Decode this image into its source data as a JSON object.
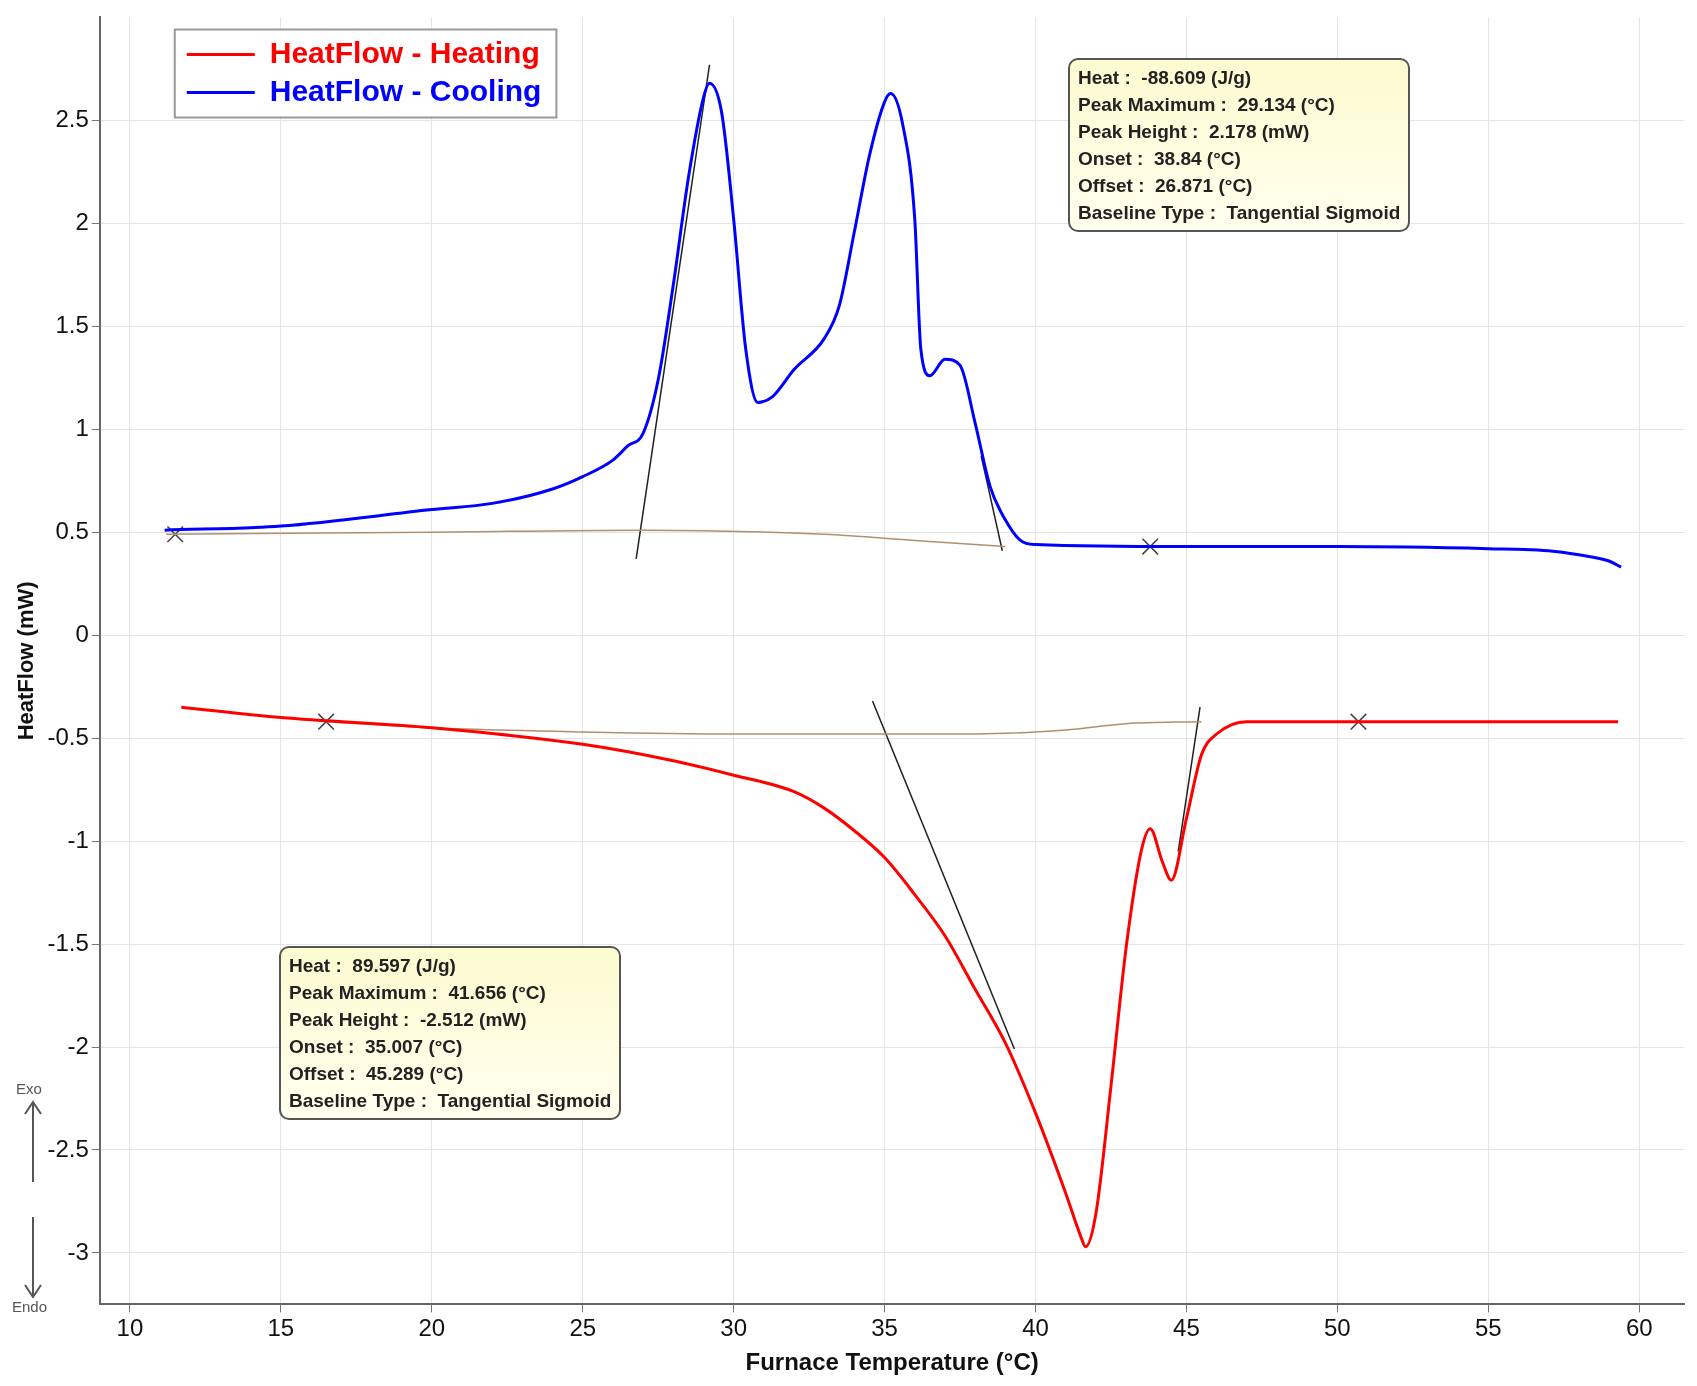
{
  "chart_data": {
    "type": "line",
    "xlabel": "Furnace Temperature (°C)",
    "ylabel": "HeatFlow (mW)",
    "xlim": [
      9,
      61.5
    ],
    "ylim": [
      -3.25,
      3
    ],
    "xticks": [
      10,
      15,
      20,
      25,
      30,
      35,
      40,
      45,
      50,
      55,
      60
    ],
    "yticks": [
      -3,
      -2.5,
      -2,
      -1.5,
      -1,
      -0.5,
      0,
      0.5,
      1,
      1.5,
      2,
      2.5
    ],
    "grid": true,
    "legend": "top left",
    "marker": "none",
    "line_style": "solid",
    "series": [
      {
        "name": "HeatFlow - Heating",
        "color": "#ff0000",
        "x": [
          11.7,
          15,
          20,
          25,
          28,
          30,
          32,
          33,
          34,
          35,
          36,
          37,
          38,
          39,
          40,
          41,
          41.5,
          41.66,
          42,
          42.5,
          43,
          43.5,
          43.8,
          44.2,
          44.5,
          45,
          45.5,
          46,
          47,
          50,
          55,
          59.3
        ],
        "values": [
          -0.35,
          -0.4,
          -0.45,
          -0.53,
          -0.61,
          -0.68,
          -0.76,
          -0.84,
          -0.95,
          -1.08,
          -1.26,
          -1.46,
          -1.72,
          -1.98,
          -2.32,
          -2.71,
          -2.92,
          -2.97,
          -2.81,
          -2.19,
          -1.52,
          -1.05,
          -0.94,
          -1.1,
          -1.19,
          -0.89,
          -0.58,
          -0.48,
          -0.42,
          -0.42,
          -0.42,
          -0.42
        ]
      },
      {
        "name": "HeatFlow - Cooling",
        "color": "#0000ff",
        "x": [
          11.15,
          15,
          20,
          22,
          24,
          25,
          26,
          26.5,
          27,
          27.5,
          28,
          28.5,
          29,
          29.2,
          29.6,
          30,
          30.4,
          30.8,
          31.3,
          32,
          33,
          33.5,
          34,
          34.5,
          35,
          35.2,
          35.6,
          36,
          36.2,
          36.5,
          37,
          37.5,
          38,
          38.5,
          39,
          39.5,
          40,
          45,
          50,
          55,
          57,
          58,
          59,
          59.4
        ],
        "values": [
          0.51,
          0.53,
          0.61,
          0.64,
          0.71,
          0.77,
          0.85,
          0.92,
          0.98,
          1.24,
          1.7,
          2.22,
          2.61,
          2.68,
          2.54,
          2.02,
          1.39,
          1.13,
          1.16,
          1.29,
          1.44,
          1.6,
          1.96,
          2.33,
          2.59,
          2.63,
          2.48,
          2.02,
          1.39,
          1.26,
          1.34,
          1.31,
          1.03,
          0.72,
          0.56,
          0.46,
          0.44,
          0.43,
          0.43,
          0.42,
          0.41,
          0.39,
          0.36,
          0.33
        ]
      },
      {
        "color": "#b09070",
        "x": [
          11.2,
          20,
          27,
          33,
          36,
          39
        ],
        "values": [
          0.49,
          0.5,
          0.51,
          0.49,
          0.46,
          0.43
        ]
      },
      {
        "color": "#b09070",
        "x": [
          16.5,
          20,
          25,
          30,
          38,
          41,
          43,
          45.5
        ],
        "values": [
          -0.42,
          -0.45,
          -0.47,
          -0.48,
          -0.48,
          -0.46,
          -0.43,
          -0.42
        ]
      },
      {
        "color": "#202020",
        "x": [
          26.77,
          29.2
        ],
        "values": [
          0.37,
          2.77
        ]
      },
      {
        "color": "#202020",
        "x": [
          38.2,
          38.9
        ],
        "values": [
          0.87,
          0.41
        ]
      },
      {
        "color": "#202020",
        "x": [
          34.6,
          39.3
        ],
        "values": [
          -0.32,
          -2.01
        ]
      },
      {
        "color": "#202020",
        "x": [
          44.73,
          45.45
        ],
        "values": [
          -1.05,
          -0.35
        ]
      },
      {
        "type": "scatter",
        "marker": "cross",
        "color": "#404040",
        "x": [
          11.5,
          43.8,
          16.5,
          50.7
        ],
        "values": [
          0.49,
          0.43,
          -0.42,
          -0.42
        ]
      }
    ],
    "annotations": [
      "Heat :  -88.609 (J/g)\nPeak Maximum :  29.134 (°C)\nPeak Height :  2.178 (mW)\nOnset :  38.84 (°C)\nOffset :  26.871 (°C)\nBaseline Type :  Tangential Sigmoid",
      "Heat :  89.597 (J/g)\nPeak Maximum :  41.656 (°C)\nPeak Height :  -2.512 (mW)\nOnset :  35.007 (°C)\nOffset :  45.289 (°C)\nBaseline Type :  Tangential Sigmoid",
      "Exo",
      "Endo"
    ]
  }
}
